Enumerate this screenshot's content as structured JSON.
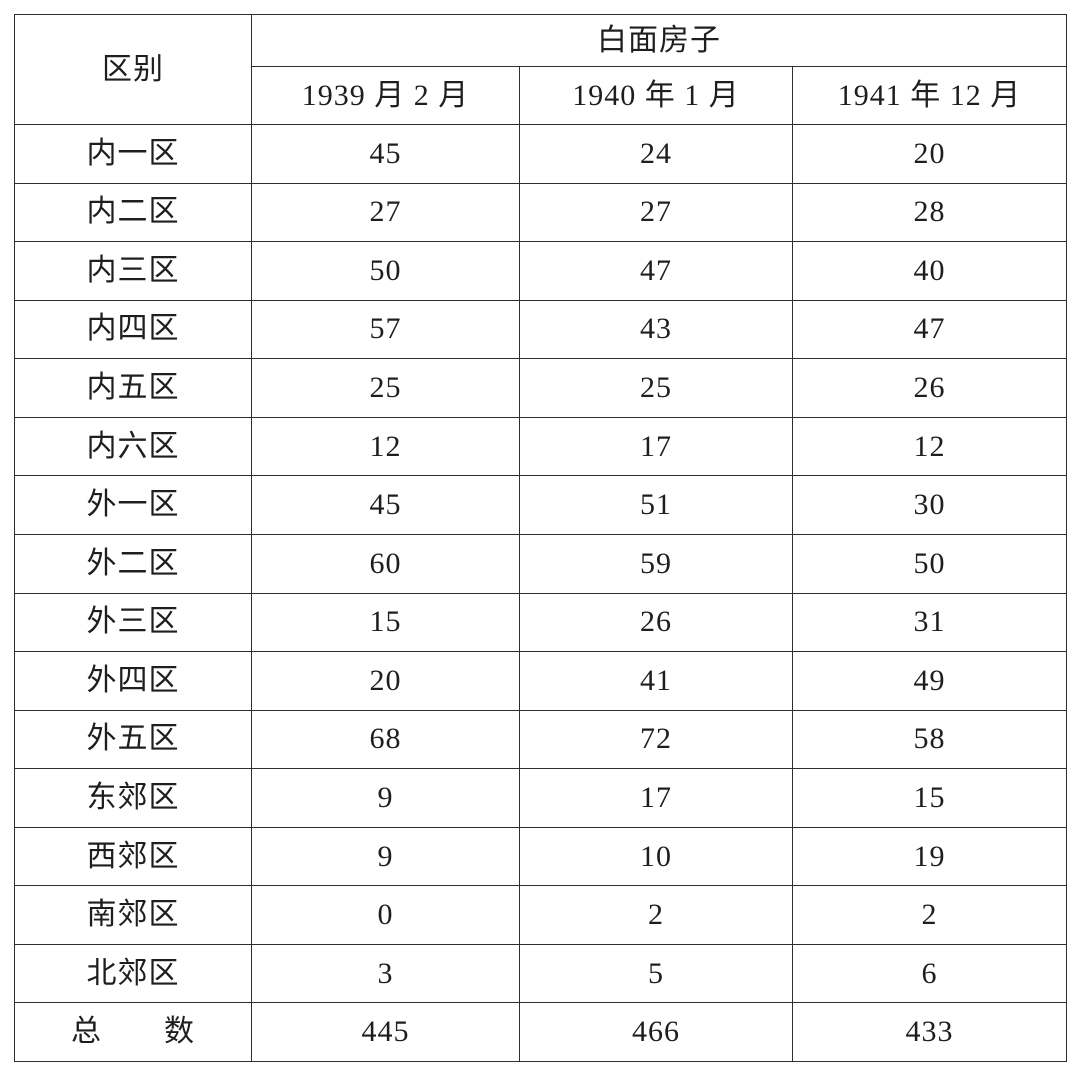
{
  "table": {
    "corner_label": "区别",
    "group_header": "白面房子",
    "column_headers": [
      "1939 月 2 月",
      "1940 年 1 月",
      "1941 年 12 月"
    ],
    "rows": [
      {
        "label": "内一区",
        "values": [
          "45",
          "24",
          "20"
        ]
      },
      {
        "label": "内二区",
        "values": [
          "27",
          "27",
          "28"
        ]
      },
      {
        "label": "内三区",
        "values": [
          "50",
          "47",
          "40"
        ]
      },
      {
        "label": "内四区",
        "values": [
          "57",
          "43",
          "47"
        ]
      },
      {
        "label": "内五区",
        "values": [
          "25",
          "25",
          "26"
        ]
      },
      {
        "label": "内六区",
        "values": [
          "12",
          "17",
          "12"
        ]
      },
      {
        "label": "外一区",
        "values": [
          "45",
          "51",
          "30"
        ]
      },
      {
        "label": "外二区",
        "values": [
          "60",
          "59",
          "50"
        ]
      },
      {
        "label": "外三区",
        "values": [
          "15",
          "26",
          "31"
        ]
      },
      {
        "label": "外四区",
        "values": [
          "20",
          "41",
          "49"
        ]
      },
      {
        "label": "外五区",
        "values": [
          "68",
          "72",
          "58"
        ]
      },
      {
        "label": "东郊区",
        "values": [
          "9",
          "17",
          "15"
        ]
      },
      {
        "label": "西郊区",
        "values": [
          "9",
          "10",
          "19"
        ]
      },
      {
        "label": "南郊区",
        "values": [
          "0",
          "2",
          "2"
        ]
      },
      {
        "label": "北郊区",
        "values": [
          "3",
          "5",
          "6"
        ]
      },
      {
        "label": "总　　数",
        "values": [
          "445",
          "466",
          "433"
        ]
      }
    ]
  }
}
